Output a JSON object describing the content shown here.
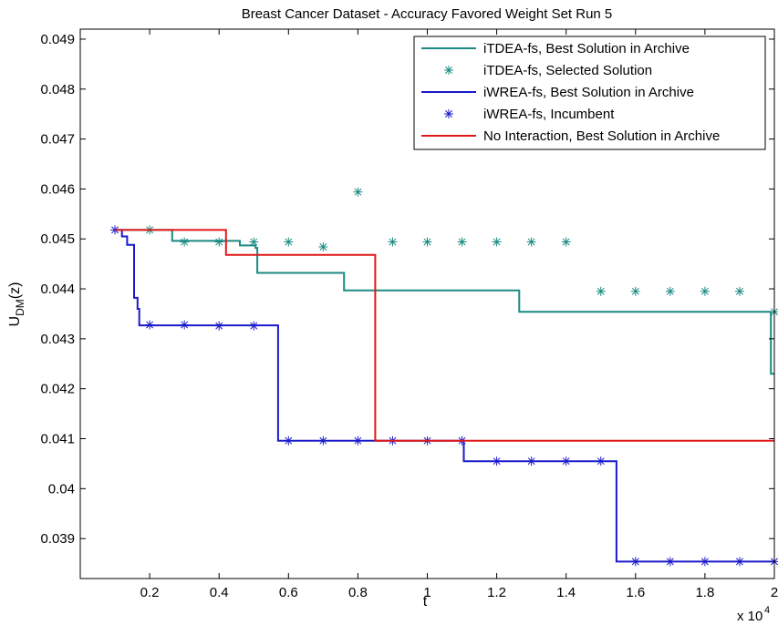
{
  "chart_data": {
    "type": "line",
    "title": "Breast Cancer Dataset - Accuracy Favored Weight Set Run 5",
    "xlabel": "t",
    "ylabel_main": "U",
    "ylabel_sub": "DM",
    "ylabel_tail": "(z)",
    "x_multiplier_base": "x 10",
    "x_multiplier_exp": "4",
    "xlim": [
      0,
      2
    ],
    "ylim": [
      0.0382,
      0.0492
    ],
    "xticks": [
      0.2,
      0.4,
      0.6,
      0.8,
      1,
      1.2,
      1.4,
      1.6,
      1.8,
      2
    ],
    "xtick_labels": [
      "0.2",
      "0.4",
      "0.6",
      "0.8",
      "1",
      "1.2",
      "1.4",
      "1.6",
      "1.8",
      "2"
    ],
    "yticks": [
      0.039,
      0.04,
      0.041,
      0.042,
      0.043,
      0.044,
      0.045,
      0.046,
      0.047,
      0.048,
      0.049
    ],
    "ytick_labels": [
      "0.039",
      "0.04",
      "0.041",
      "0.042",
      "0.043",
      "0.044",
      "0.045",
      "0.046",
      "0.047",
      "0.048",
      "0.049"
    ],
    "legend_position": "top-right",
    "grid": false,
    "series": [
      {
        "name": "iTDEA-fs, Best Solution in Archive",
        "style": "line",
        "color": "#1a8a82",
        "x": [
          0.1,
          0.265,
          0.265,
          0.46,
          0.46,
          0.505,
          0.505,
          0.51,
          0.51,
          0.76,
          0.76,
          1.265,
          1.265,
          1.99,
          1.99,
          2.0
        ],
        "y": [
          0.04518,
          0.04518,
          0.04496,
          0.04496,
          0.04487,
          0.04487,
          0.04482,
          0.04482,
          0.04432,
          0.04432,
          0.04397,
          0.04397,
          0.04354,
          0.04354,
          0.0423,
          0.0423
        ]
      },
      {
        "name": "iTDEA-fs, Selected Solution",
        "style": "marker",
        "color": "#1a8a82",
        "x": [
          0.2,
          0.3,
          0.4,
          0.5,
          0.6,
          0.7,
          0.8,
          0.9,
          1.0,
          1.1,
          1.2,
          1.3,
          1.4,
          1.5,
          1.6,
          1.7,
          1.8,
          1.9,
          2.0
        ],
        "y": [
          0.04518,
          0.04494,
          0.04494,
          0.04494,
          0.04494,
          0.04484,
          0.04594,
          0.04494,
          0.04494,
          0.04494,
          0.04494,
          0.04494,
          0.04494,
          0.04395,
          0.04395,
          0.04395,
          0.04395,
          0.04395,
          0.04354
        ]
      },
      {
        "name": "iWREA-fs, Best Solution in Archive",
        "style": "line",
        "color": "#1a1acc",
        "x": [
          0.1,
          0.12,
          0.12,
          0.135,
          0.135,
          0.155,
          0.155,
          0.165,
          0.165,
          0.17,
          0.17,
          0.57,
          0.57,
          1.105,
          1.105,
          1.545,
          1.545,
          2.0
        ],
        "y": [
          0.04518,
          0.04518,
          0.04505,
          0.04505,
          0.04488,
          0.04488,
          0.04382,
          0.04382,
          0.0436,
          0.0436,
          0.04327,
          0.04327,
          0.04096,
          0.04096,
          0.04055,
          0.04055,
          0.03854,
          0.03854
        ]
      },
      {
        "name": "iWREA-fs, Incumbent",
        "style": "marker",
        "color": "#1a1acc",
        "x": [
          0.1,
          0.2,
          0.3,
          0.4,
          0.5,
          0.6,
          0.7,
          0.8,
          0.9,
          1.0,
          1.1,
          1.2,
          1.3,
          1.4,
          1.5,
          1.6,
          1.7,
          1.8,
          1.9,
          2.0
        ],
        "y": [
          0.04518,
          0.04328,
          0.04328,
          0.04326,
          0.04326,
          0.04096,
          0.04096,
          0.04096,
          0.04096,
          0.04096,
          0.04096,
          0.04055,
          0.04055,
          0.04055,
          0.04055,
          0.03854,
          0.03854,
          0.03854,
          0.03854,
          0.03854
        ]
      },
      {
        "name": "No Interaction, Best Solution in Archive",
        "style": "line",
        "color": "#e01818",
        "x": [
          0.1,
          0.42,
          0.42,
          0.85,
          0.85,
          2.0
        ],
        "y": [
          0.04518,
          0.04518,
          0.04468,
          0.04468,
          0.04096,
          0.04096
        ]
      }
    ]
  }
}
